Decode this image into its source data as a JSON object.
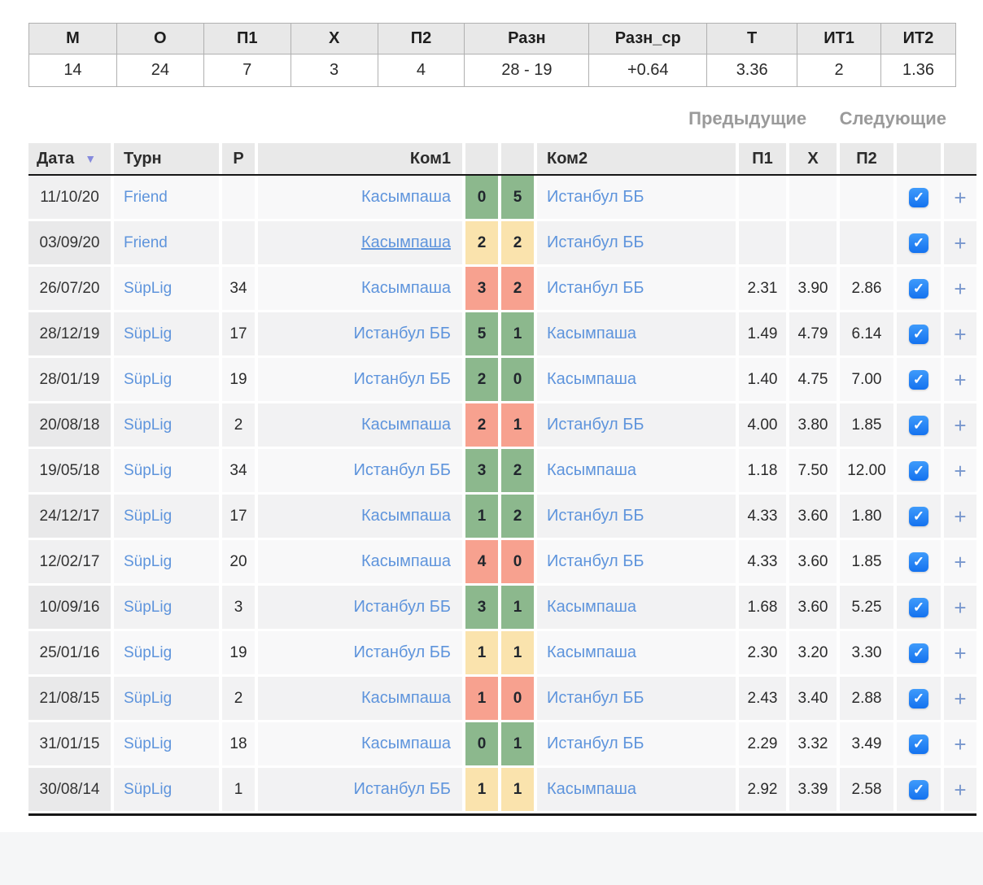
{
  "summary": {
    "columns": [
      {
        "label": "М",
        "value": "14"
      },
      {
        "label": "О",
        "value": "24"
      },
      {
        "label": "П1",
        "value": "7"
      },
      {
        "label": "Х",
        "value": "3"
      },
      {
        "label": "П2",
        "value": "4"
      },
      {
        "label": "Разн",
        "value": "28 - 19"
      },
      {
        "label": "Разн_ср",
        "value": "+0.64"
      },
      {
        "label": "Т",
        "value": "3.36"
      },
      {
        "label": "ИТ1",
        "value": "2"
      },
      {
        "label": "ИТ2",
        "value": "1.36"
      }
    ]
  },
  "pagination": {
    "previous": "Предыдущие",
    "next": "Следующие"
  },
  "table": {
    "headers": {
      "date": "Дата",
      "tournament": "Турн",
      "round": "Р",
      "team1": "Ком1",
      "team2": "Ком2",
      "p1": "П1",
      "x": "Х",
      "p2": "П2"
    },
    "rows": [
      {
        "date": "11/10/20",
        "tournament": "Friend",
        "round": "",
        "team1": "Касымпаша",
        "score1": "0",
        "score2": "5",
        "team2": "Истанбул ББ",
        "p1": "",
        "x": "",
        "p2": "",
        "result": "win",
        "checked": true,
        "team1_underlined": false
      },
      {
        "date": "03/09/20",
        "tournament": "Friend",
        "round": "",
        "team1": "Касымпаша",
        "score1": "2",
        "score2": "2",
        "team2": "Истанбул ББ",
        "p1": "",
        "x": "",
        "p2": "",
        "result": "draw",
        "checked": true,
        "team1_underlined": true
      },
      {
        "date": "26/07/20",
        "tournament": "SüpLig",
        "round": "34",
        "team1": "Касымпаша",
        "score1": "3",
        "score2": "2",
        "team2": "Истанбул ББ",
        "p1": "2.31",
        "x": "3.90",
        "p2": "2.86",
        "result": "loss",
        "checked": true,
        "team1_underlined": false
      },
      {
        "date": "28/12/19",
        "tournament": "SüpLig",
        "round": "17",
        "team1": "Истанбул ББ",
        "score1": "5",
        "score2": "1",
        "team2": "Касымпаша",
        "p1": "1.49",
        "x": "4.79",
        "p2": "6.14",
        "result": "win",
        "checked": true,
        "team1_underlined": false
      },
      {
        "date": "28/01/19",
        "tournament": "SüpLig",
        "round": "19",
        "team1": "Истанбул ББ",
        "score1": "2",
        "score2": "0",
        "team2": "Касымпаша",
        "p1": "1.40",
        "x": "4.75",
        "p2": "7.00",
        "result": "win",
        "checked": true,
        "team1_underlined": false
      },
      {
        "date": "20/08/18",
        "tournament": "SüpLig",
        "round": "2",
        "team1": "Касымпаша",
        "score1": "2",
        "score2": "1",
        "team2": "Истанбул ББ",
        "p1": "4.00",
        "x": "3.80",
        "p2": "1.85",
        "result": "loss",
        "checked": true,
        "team1_underlined": false
      },
      {
        "date": "19/05/18",
        "tournament": "SüpLig",
        "round": "34",
        "team1": "Истанбул ББ",
        "score1": "3",
        "score2": "2",
        "team2": "Касымпаша",
        "p1": "1.18",
        "x": "7.50",
        "p2": "12.00",
        "result": "win",
        "checked": true,
        "team1_underlined": false
      },
      {
        "date": "24/12/17",
        "tournament": "SüpLig",
        "round": "17",
        "team1": "Касымпаша",
        "score1": "1",
        "score2": "2",
        "team2": "Истанбул ББ",
        "p1": "4.33",
        "x": "3.60",
        "p2": "1.80",
        "result": "win",
        "checked": true,
        "team1_underlined": false
      },
      {
        "date": "12/02/17",
        "tournament": "SüpLig",
        "round": "20",
        "team1": "Касымпаша",
        "score1": "4",
        "score2": "0",
        "team2": "Истанбул ББ",
        "p1": "4.33",
        "x": "3.60",
        "p2": "1.85",
        "result": "loss",
        "checked": true,
        "team1_underlined": false
      },
      {
        "date": "10/09/16",
        "tournament": "SüpLig",
        "round": "3",
        "team1": "Истанбул ББ",
        "score1": "3",
        "score2": "1",
        "team2": "Касымпаша",
        "p1": "1.68",
        "x": "3.60",
        "p2": "5.25",
        "result": "win",
        "checked": true,
        "team1_underlined": false
      },
      {
        "date": "25/01/16",
        "tournament": "SüpLig",
        "round": "19",
        "team1": "Истанбул ББ",
        "score1": "1",
        "score2": "1",
        "team2": "Касымпаша",
        "p1": "2.30",
        "x": "3.20",
        "p2": "3.30",
        "result": "draw",
        "checked": true,
        "team1_underlined": false
      },
      {
        "date": "21/08/15",
        "tournament": "SüpLig",
        "round": "2",
        "team1": "Касымпаша",
        "score1": "1",
        "score2": "0",
        "team2": "Истанбул ББ",
        "p1": "2.43",
        "x": "3.40",
        "p2": "2.88",
        "result": "loss",
        "checked": true,
        "team1_underlined": false
      },
      {
        "date": "31/01/15",
        "tournament": "SüpLig",
        "round": "18",
        "team1": "Касымпаша",
        "score1": "0",
        "score2": "1",
        "team2": "Истанбул ББ",
        "p1": "2.29",
        "x": "3.32",
        "p2": "3.49",
        "result": "win",
        "checked": true,
        "team1_underlined": false
      },
      {
        "date": "30/08/14",
        "tournament": "SüpLig",
        "round": "1",
        "team1": "Истанбул ББ",
        "score1": "1",
        "score2": "1",
        "team2": "Касымпаша",
        "p1": "2.92",
        "x": "3.39",
        "p2": "2.58",
        "result": "draw",
        "checked": true,
        "team1_underlined": false
      }
    ]
  },
  "icons": {
    "sort_desc": "▼",
    "checkmark": "✓",
    "plus": "+"
  },
  "colors": {
    "win_green": "#8CB88D",
    "draw_yellow": "#FAE3AD",
    "loss_salmon": "#F7A18F",
    "link_blue": "#5E94DC",
    "checkbox_blue": "#1E80F2",
    "plus_blue": "#7897CD",
    "sort_arrow": "#858ADD",
    "pagination_gray": "#9A9A9A"
  }
}
